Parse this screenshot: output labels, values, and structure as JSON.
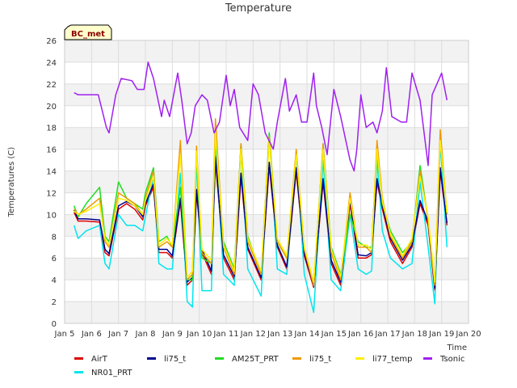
{
  "chart_data": {
    "type": "line",
    "title": "Temperature",
    "xlabel": "Time",
    "ylabel": "Temperatures (C)",
    "ylim": [
      0,
      26
    ],
    "xlim": [
      5,
      20
    ],
    "yticks": [
      0,
      2,
      4,
      6,
      8,
      10,
      12,
      14,
      16,
      18,
      20,
      22,
      24,
      26
    ],
    "xticks": [
      {
        "v": 5,
        "label": "Jan 5"
      },
      {
        "v": 6,
        "label": "Jan 6"
      },
      {
        "v": 7,
        "label": "Jan 7"
      },
      {
        "v": 8,
        "label": "Jan 8"
      },
      {
        "v": 9,
        "label": "Jan 9"
      },
      {
        "v": 10,
        "label": "Jan 10"
      },
      {
        "v": 11,
        "label": "Jan 11"
      },
      {
        "v": 12,
        "label": "Jan 12"
      },
      {
        "v": 13,
        "label": "Jan 13"
      },
      {
        "v": 14,
        "label": "Jan 14"
      },
      {
        "v": 15,
        "label": "Jan 15"
      },
      {
        "v": 16,
        "label": "Jan 16"
      },
      {
        "v": 17,
        "label": "Jan 17"
      },
      {
        "v": 18,
        "label": "Jan 18"
      },
      {
        "v": 19,
        "label": "Jan 19"
      },
      {
        "v": 20,
        "label": "Jan 20"
      }
    ],
    "badge": "BC_met",
    "grid": true,
    "legend_position": "bottom",
    "x_units": "day of January",
    "series": [
      {
        "name": "AirT",
        "color": "#dd0000",
        "x": [
          5.35,
          5.5,
          5.8,
          6.3,
          6.5,
          6.65,
          7.0,
          7.3,
          7.6,
          7.9,
          8.0,
          8.3,
          8.5,
          8.8,
          9.0,
          9.3,
          9.55,
          9.75,
          9.9,
          10.1,
          10.45,
          10.6,
          10.9,
          11.3,
          11.55,
          11.8,
          12.3,
          12.6,
          12.9,
          13.25,
          13.6,
          13.9,
          14.25,
          14.6,
          14.9,
          15.25,
          15.6,
          15.9,
          16.2,
          16.4,
          16.6,
          16.8,
          17.1,
          17.55,
          17.9,
          18.2,
          18.5,
          18.75,
          18.95,
          19.2
        ],
        "y": [
          10.2,
          9.4,
          9.4,
          9.3,
          6.5,
          6.2,
          10.5,
          11.0,
          10.5,
          9.5,
          10.8,
          12.5,
          6.5,
          6.5,
          6.0,
          11.2,
          3.5,
          4.0,
          12.0,
          6.5,
          4.5,
          15.0,
          6.0,
          4.0,
          13.5,
          6.8,
          4.0,
          14.5,
          7.0,
          5.0,
          14.0,
          6.2,
          3.3,
          13.0,
          5.5,
          3.5,
          11.0,
          6.0,
          6.0,
          6.3,
          13.0,
          10.5,
          7.5,
          5.5,
          7.0,
          11.0,
          9.0,
          3.0,
          14.0,
          9.0
        ]
      },
      {
        "name": "NR01_PRT",
        "color": "#00e5ee",
        "x": [
          5.35,
          5.5,
          5.8,
          6.3,
          6.5,
          6.65,
          7.0,
          7.3,
          7.6,
          7.9,
          8.0,
          8.3,
          8.5,
          8.8,
          9.0,
          9.3,
          9.55,
          9.75,
          9.9,
          10.1,
          10.45,
          10.6,
          10.9,
          11.3,
          11.55,
          11.8,
          12.3,
          12.6,
          12.9,
          13.25,
          13.6,
          13.9,
          14.25,
          14.6,
          14.9,
          15.25,
          15.6,
          15.9,
          16.2,
          16.4,
          16.6,
          16.8,
          17.1,
          17.55,
          17.9,
          18.2,
          18.5,
          18.75,
          18.95,
          19.2
        ],
        "y": [
          9.0,
          7.8,
          8.5,
          9.0,
          5.5,
          5.0,
          10.0,
          9.0,
          9.0,
          8.5,
          9.8,
          13.5,
          5.5,
          5.0,
          5.0,
          13.8,
          2.0,
          1.5,
          15.0,
          3.0,
          3.0,
          16.5,
          4.5,
          3.5,
          16.0,
          5.0,
          2.5,
          17.5,
          5.0,
          4.5,
          15.5,
          4.5,
          1.0,
          15.0,
          4.0,
          3.0,
          10.0,
          5.0,
          4.5,
          4.8,
          15.0,
          8.5,
          6.0,
          5.0,
          5.5,
          13.0,
          7.0,
          1.8,
          16.5,
          7.0
        ]
      },
      {
        "name": "li75_t",
        "color": "#00008b",
        "x": [
          5.35,
          5.5,
          5.8,
          6.3,
          6.5,
          6.65,
          7.0,
          7.3,
          7.6,
          7.9,
          8.0,
          8.3,
          8.5,
          8.8,
          9.0,
          9.3,
          9.55,
          9.75,
          9.9,
          10.1,
          10.45,
          10.6,
          10.9,
          11.3,
          11.55,
          11.8,
          12.3,
          12.6,
          12.9,
          13.25,
          13.6,
          13.9,
          14.25,
          14.6,
          14.9,
          15.25,
          15.6,
          15.9,
          16.2,
          16.4,
          16.6,
          16.8,
          17.1,
          17.55,
          17.9,
          18.2,
          18.5,
          18.75,
          18.95,
          19.2
        ],
        "y": [
          10.4,
          9.6,
          9.6,
          9.5,
          6.8,
          6.4,
          10.8,
          11.2,
          10.8,
          9.8,
          11.0,
          12.8,
          6.8,
          6.8,
          6.2,
          11.5,
          3.8,
          4.2,
          12.3,
          6.8,
          4.8,
          15.3,
          6.3,
          4.3,
          13.8,
          7.0,
          4.2,
          14.8,
          7.2,
          5.2,
          14.3,
          6.4,
          3.5,
          13.3,
          5.8,
          3.8,
          11.3,
          6.3,
          6.2,
          6.5,
          13.3,
          10.8,
          7.8,
          5.8,
          7.2,
          11.3,
          9.3,
          3.2,
          14.3,
          9.2
        ]
      },
      {
        "name": "AM25T_PRT",
        "color": "#22dd22",
        "x": [
          5.35,
          5.5,
          5.8,
          6.3,
          6.5,
          6.65,
          7.0,
          7.3,
          7.6,
          7.9,
          8.0,
          8.3,
          8.5,
          8.8,
          9.0,
          9.3,
          9.55,
          9.75,
          9.9,
          10.1,
          10.45,
          10.6,
          10.9,
          11.3,
          11.55,
          11.8,
          12.3,
          12.6,
          12.9,
          13.25,
          13.6,
          13.9,
          14.25,
          14.6,
          14.9,
          15.25,
          15.6,
          15.9,
          16.2,
          16.4,
          16.6,
          16.8,
          17.1,
          17.55,
          17.9,
          18.2,
          18.5,
          18.75,
          18.95,
          19.2
        ],
        "y": [
          10.8,
          9.8,
          11.0,
          12.5,
          8.0,
          7.5,
          13.0,
          11.5,
          11.0,
          10.5,
          12.0,
          14.3,
          7.5,
          8.0,
          7.0,
          12.5,
          4.0,
          4.0,
          15.5,
          6.0,
          5.5,
          17.0,
          7.5,
          5.0,
          16.5,
          8.0,
          4.5,
          17.5,
          7.5,
          6.0,
          15.5,
          7.0,
          3.5,
          16.5,
          7.0,
          4.5,
          10.0,
          7.5,
          7.0,
          7.0,
          16.0,
          11.0,
          8.5,
          6.5,
          7.5,
          14.5,
          9.5,
          3.5,
          17.0,
          10.0
        ]
      },
      {
        "name": "li75_t",
        "color": "#ee9900",
        "x": [
          5.35,
          5.5,
          5.8,
          6.3,
          6.5,
          6.65,
          7.0,
          7.3,
          7.6,
          7.9,
          8.0,
          8.3,
          8.5,
          8.8,
          9.0,
          9.3,
          9.55,
          9.75,
          9.9,
          10.1,
          10.45,
          10.6,
          10.9,
          11.3,
          11.55,
          11.8,
          12.3,
          12.6,
          12.9,
          13.25,
          13.6,
          13.9,
          14.25,
          14.6,
          14.9,
          15.25,
          15.6,
          15.9,
          16.2,
          16.4,
          16.6,
          16.8,
          17.1,
          17.55,
          17.9,
          18.2,
          18.5,
          18.75,
          18.95,
          19.2
        ],
        "y": [
          10.5,
          10.0,
          10.5,
          11.5,
          7.5,
          7.0,
          12.0,
          11.5,
          11.0,
          10.0,
          11.5,
          14.0,
          7.0,
          7.5,
          7.0,
          16.8,
          4.0,
          4.5,
          16.3,
          6.5,
          5.5,
          18.8,
          7.0,
          4.5,
          16.5,
          7.5,
          4.5,
          17.2,
          7.5,
          6.0,
          16.0,
          6.8,
          3.5,
          16.5,
          6.5,
          4.0,
          12.0,
          7.0,
          7.0,
          6.5,
          16.8,
          11.5,
          8.0,
          6.0,
          7.5,
          14.0,
          9.5,
          3.5,
          17.8,
          10.0
        ]
      },
      {
        "name": "li77_temp",
        "color": "#ffee00",
        "x": [
          5.35,
          5.5,
          5.8,
          6.3,
          6.5,
          6.65,
          7.0,
          7.3,
          7.6,
          7.9,
          8.0,
          8.3,
          8.5,
          8.8,
          9.0,
          9.3,
          9.55,
          9.75,
          9.9,
          10.1,
          10.45,
          10.6,
          10.9,
          11.3,
          11.55,
          11.8,
          12.3,
          12.6,
          12.9,
          13.25,
          13.6,
          13.9,
          14.25,
          14.6,
          14.9,
          15.25,
          15.6,
          15.9,
          16.2,
          16.4,
          16.6,
          16.8,
          17.1,
          17.55,
          17.9,
          18.2,
          18.5,
          18.75,
          18.95,
          19.2
        ],
        "y": [
          10.3,
          10.0,
          10.3,
          11.0,
          7.8,
          7.2,
          11.5,
          11.3,
          10.8,
          10.0,
          11.3,
          13.5,
          7.2,
          7.8,
          7.2,
          15.5,
          4.2,
          4.8,
          15.8,
          6.8,
          5.8,
          17.5,
          7.2,
          4.8,
          16.0,
          7.8,
          4.8,
          16.8,
          7.8,
          6.2,
          15.5,
          7.0,
          3.8,
          16.0,
          6.8,
          4.3,
          11.5,
          7.2,
          7.2,
          6.8,
          16.0,
          11.2,
          8.2,
          6.2,
          7.8,
          13.5,
          9.8,
          3.8,
          16.8,
          10.2
        ]
      },
      {
        "name": "Tsonic",
        "color": "#a020f0",
        "x": [
          5.35,
          5.5,
          5.65,
          6.25,
          6.55,
          6.65,
          6.9,
          7.1,
          7.5,
          7.7,
          7.95,
          8.1,
          8.3,
          8.6,
          8.7,
          8.9,
          9.2,
          9.35,
          9.55,
          9.7,
          9.85,
          10.1,
          10.3,
          10.55,
          10.75,
          11.0,
          11.15,
          11.3,
          11.5,
          11.8,
          12.0,
          12.2,
          12.45,
          12.75,
          12.9,
          13.2,
          13.35,
          13.6,
          13.8,
          14.0,
          14.25,
          14.35,
          14.55,
          14.75,
          15.0,
          15.25,
          15.6,
          15.75,
          15.85,
          16.0,
          16.2,
          16.45,
          16.6,
          16.8,
          16.95,
          17.15,
          17.5,
          17.7,
          17.9,
          18.2,
          18.5,
          18.65,
          19.0,
          19.2
        ],
        "y": [
          21.2,
          21.0,
          21.0,
          21.0,
          18.0,
          17.5,
          21.0,
          22.5,
          22.3,
          21.5,
          21.5,
          24.0,
          22.5,
          19.0,
          20.5,
          19.0,
          23.0,
          20.5,
          16.5,
          17.5,
          20.0,
          21.0,
          20.5,
          17.5,
          18.5,
          22.8,
          20.0,
          21.5,
          18.0,
          16.8,
          22.0,
          21.0,
          17.5,
          16.0,
          18.5,
          22.5,
          19.5,
          21.0,
          18.5,
          18.5,
          23.0,
          20.0,
          18.0,
          15.5,
          21.5,
          19.0,
          15.0,
          14.0,
          16.0,
          21.0,
          18.0,
          18.5,
          17.5,
          19.5,
          23.5,
          19.0,
          18.5,
          18.5,
          23.0,
          20.5,
          14.5,
          21.0,
          23.0,
          20.5
        ]
      }
    ]
  }
}
